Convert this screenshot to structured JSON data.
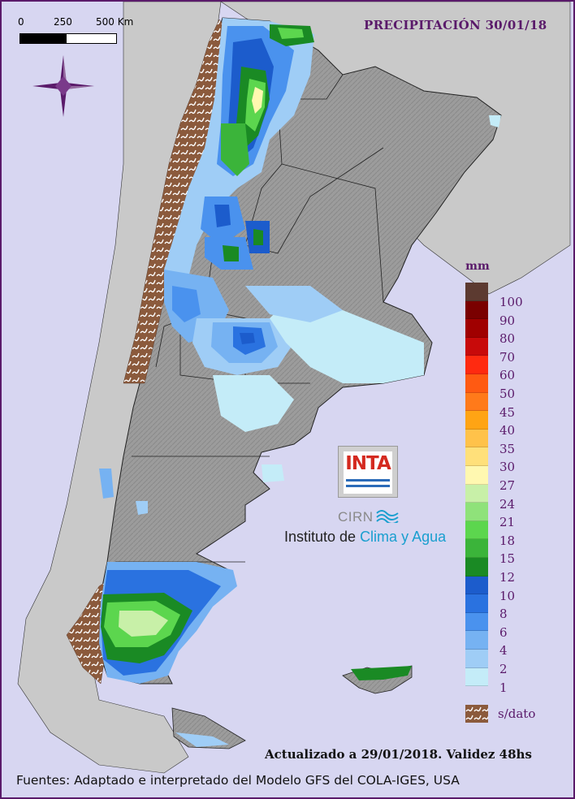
{
  "title": "PRECIPITACIÓN 30/01/18",
  "scale": {
    "labels": [
      "0",
      "250",
      "500 Km"
    ]
  },
  "legend": {
    "unit": "mm",
    "classes": [
      {
        "label": "100",
        "color": "#5c3a30"
      },
      {
        "label": "90",
        "color": "#7a0000"
      },
      {
        "label": "80",
        "color": "#a00000"
      },
      {
        "label": "70",
        "color": "#c80a0a"
      },
      {
        "label": "60",
        "color": "#ff2a10"
      },
      {
        "label": "50",
        "color": "#ff5a12"
      },
      {
        "label": "45",
        "color": "#ff7a1a"
      },
      {
        "label": "40",
        "color": "#ffa414"
      },
      {
        "label": "35",
        "color": "#ffc24a"
      },
      {
        "label": "30",
        "color": "#ffe07a"
      },
      {
        "label": "27",
        "color": "#fff8b0"
      },
      {
        "label": "24",
        "color": "#c8f0a8"
      },
      {
        "label": "21",
        "color": "#8fe27a"
      },
      {
        "label": "18",
        "color": "#5cd64e"
      },
      {
        "label": "15",
        "color": "#3bb43a"
      },
      {
        "label": "12",
        "color": "#1a8a24"
      },
      {
        "label": "10",
        "color": "#1c5ccc"
      },
      {
        "label": "8",
        "color": "#2a72e0"
      },
      {
        "label": "6",
        "color": "#4a92ee"
      },
      {
        "label": "4",
        "color": "#76b2f2"
      },
      {
        "label": "2",
        "color": "#9fcdf6"
      },
      {
        "label": "1",
        "color": "#c4ecf8"
      }
    ],
    "no_data_label": "s/dato",
    "no_data_color": "#8b5a3c"
  },
  "logo": {
    "text": "INTA",
    "subtitle": "CIRN",
    "institute_prefix": "Instituto de ",
    "institute_accent": "Clima y Agua"
  },
  "footer": {
    "updated": "Actualizado a 29/01/2018. Validez 48hs",
    "sources": "Fuentes: Adaptado e interpretado del Modelo GFS del COLA-IGES, USA"
  },
  "colors": {
    "background": "#d7d6f1",
    "frame": "#5a1a6a",
    "land": "#a0a0a0",
    "land_dark": "#8a8a8a",
    "neighbors": "#c9c9c9"
  }
}
